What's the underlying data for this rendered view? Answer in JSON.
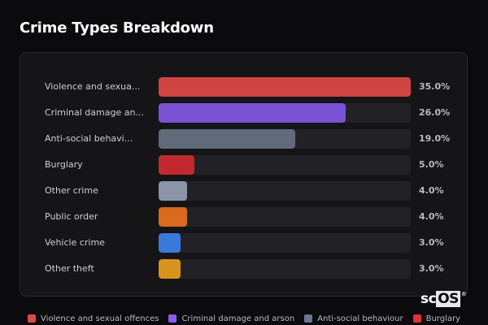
{
  "header": {
    "title": "Crime Types Breakdown"
  },
  "chart_data": {
    "type": "bar",
    "orientation": "horizontal",
    "title": "Crime Types Breakdown",
    "categories": [
      "Violence and sexual offences",
      "Criminal damage and arson",
      "Anti-social behaviour",
      "Burglary",
      "Other crime",
      "Public order",
      "Vehicle crime",
      "Other theft"
    ],
    "display_labels": [
      "Violence and sexua...",
      "Criminal damage an...",
      "Anti-social behavi...",
      "Burglary",
      "Other crime",
      "Public order",
      "Vehicle crime",
      "Other theft"
    ],
    "values": [
      35.0,
      26.0,
      19.0,
      5.0,
      4.0,
      4.0,
      3.0,
      3.0
    ],
    "value_labels": [
      "35.0%",
      "26.0%",
      "19.0%",
      "5.0%",
      "4.0%",
      "4.0%",
      "3.0%",
      "3.0%"
    ],
    "colors": [
      "#d04444",
      "#7a52d6",
      "#5f6a7a",
      "#c2292e",
      "#8a95a5",
      "#d96a1e",
      "#3b78dc",
      "#d9931c"
    ],
    "xlim": [
      0,
      35
    ],
    "grid": false,
    "legend_position": "bottom",
    "legend": [
      "Violence and sexual offences",
      "Criminal damage and arson",
      "Anti-social behaviour",
      "Burglary"
    ]
  },
  "legend": {
    "items": [
      {
        "label": "Violence and sexual offences",
        "color": "#e04848"
      },
      {
        "label": "Criminal damage and arson",
        "color": "#8a5cf0"
      },
      {
        "label": "Anti-social behaviour",
        "color": "#6b7790"
      },
      {
        "label": "Burglary",
        "color": "#e0303a"
      }
    ]
  },
  "watermark": {
    "prefix": "sc",
    "highlight": "OS",
    "mark": "®"
  }
}
